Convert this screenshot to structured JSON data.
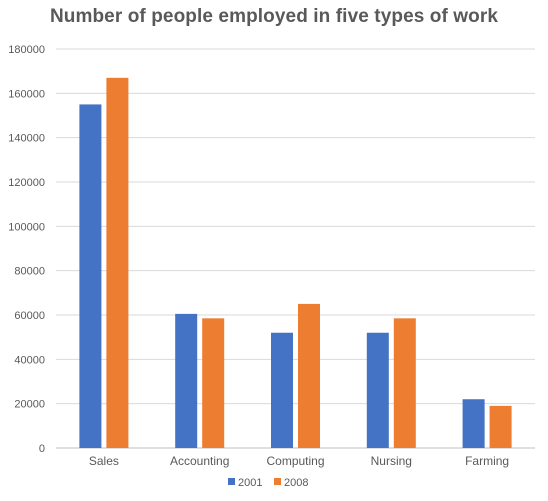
{
  "chart_data": {
    "type": "bar",
    "title": "Number of people employed in five types of work",
    "categories": [
      "Sales",
      "Accounting",
      "Computing",
      "Nursing",
      "Farming"
    ],
    "series": [
      {
        "name": "2001",
        "color": "#4472C4",
        "values": [
          155000,
          60500,
          52000,
          52000,
          22000
        ]
      },
      {
        "name": "2008",
        "color": "#ED7D31",
        "values": [
          167000,
          58500,
          65000,
          58500,
          19000
        ]
      }
    ],
    "y_ticks": [
      "0",
      "20000",
      "40000",
      "60000",
      "80000",
      "100000",
      "120000",
      "140000",
      "160000",
      "180000"
    ],
    "ylim": [
      0,
      180000
    ],
    "grid": true,
    "legend_position": "bottom",
    "xlabel": "",
    "ylabel": ""
  }
}
